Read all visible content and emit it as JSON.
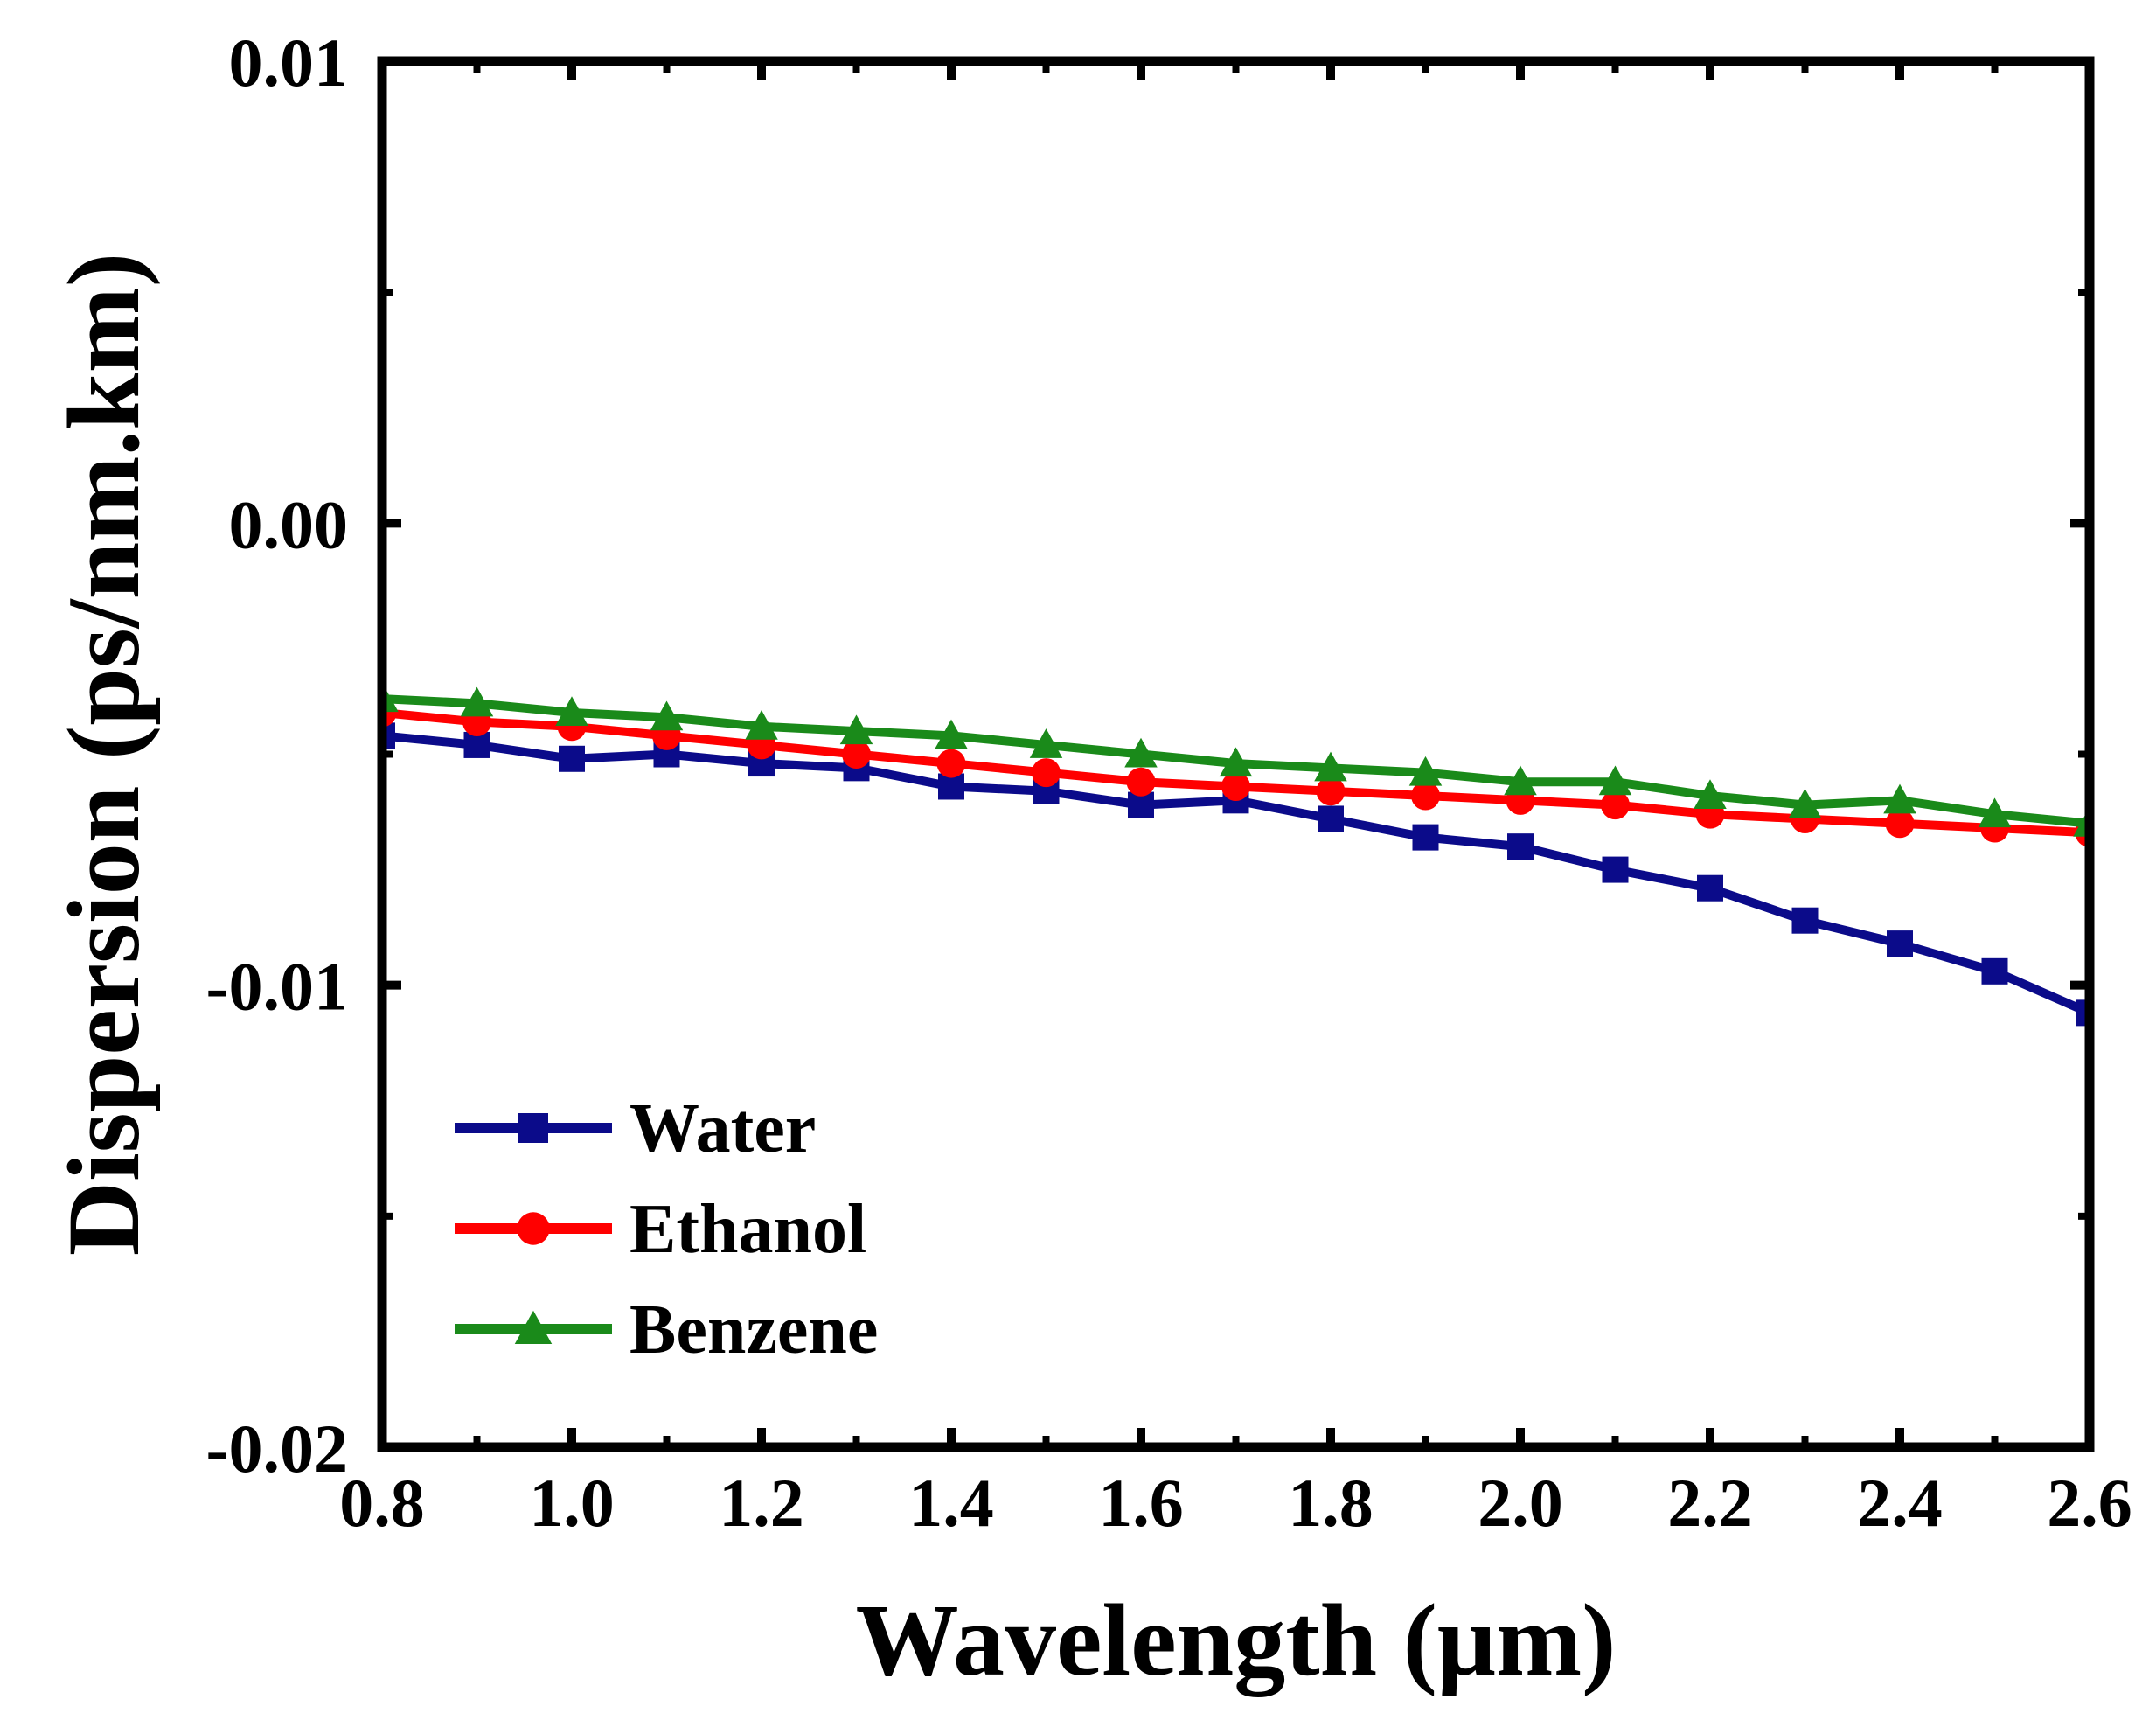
{
  "chart_data": {
    "type": "line",
    "xlabel": "Wavelength (μm)",
    "ylabel": "Dispersion (ps/nm.km)",
    "xlim": [
      0.8,
      2.6
    ],
    "ylim": [
      -0.02,
      0.01
    ],
    "x_ticks": [
      0.8,
      1.0,
      1.2,
      1.4,
      1.6,
      1.8,
      2.0,
      2.2,
      2.4,
      2.6
    ],
    "x_tick_labels": [
      "0.8",
      "1.0",
      "1.2",
      "1.4",
      "1.6",
      "1.8",
      "2.0",
      "2.2",
      "2.4",
      "2.6"
    ],
    "y_ticks": [
      0.01,
      0.0,
      -0.01,
      -0.02
    ],
    "y_tick_labels": [
      "0.01",
      "0.00",
      "-0.01",
      "-0.02"
    ],
    "y_minor_ticks": [
      0.005,
      -0.005,
      -0.015
    ],
    "grid": false,
    "legend_position": "bottom-left",
    "x": [
      0.8,
      0.9,
      1.0,
      1.1,
      1.2,
      1.3,
      1.4,
      1.5,
      1.6,
      1.7,
      1.8,
      1.9,
      2.0,
      2.1,
      2.2,
      2.3,
      2.4,
      2.5,
      2.6
    ],
    "series": [
      {
        "name": "Water",
        "color": "#0b0b8a",
        "marker": "square",
        "values": [
          -0.0046,
          -0.0048,
          -0.0051,
          -0.005,
          -0.0052,
          -0.0053,
          -0.0057,
          -0.0058,
          -0.0061,
          -0.006,
          -0.0064,
          -0.0068,
          -0.007,
          -0.0075,
          -0.0079,
          -0.0086,
          -0.0091,
          -0.0097,
          -0.0106
        ]
      },
      {
        "name": "Ethanol",
        "color": "#ff0000",
        "marker": "circle",
        "values": [
          -0.0041,
          -0.0043,
          -0.0044,
          -0.0046,
          -0.0048,
          -0.005,
          -0.0052,
          -0.0054,
          -0.0056,
          -0.0057,
          -0.0058,
          -0.0059,
          -0.006,
          -0.0061,
          -0.0063,
          -0.0064,
          -0.0065,
          -0.0066,
          -0.0067
        ]
      },
      {
        "name": "Benzene",
        "color": "#1a8a1a",
        "marker": "triangle",
        "values": [
          -0.0038,
          -0.0039,
          -0.0041,
          -0.0042,
          -0.0044,
          -0.0045,
          -0.0046,
          -0.0048,
          -0.005,
          -0.0052,
          -0.0053,
          -0.0054,
          -0.0056,
          -0.0056,
          -0.0059,
          -0.0061,
          -0.006,
          -0.0063,
          -0.0065
        ]
      }
    ]
  }
}
